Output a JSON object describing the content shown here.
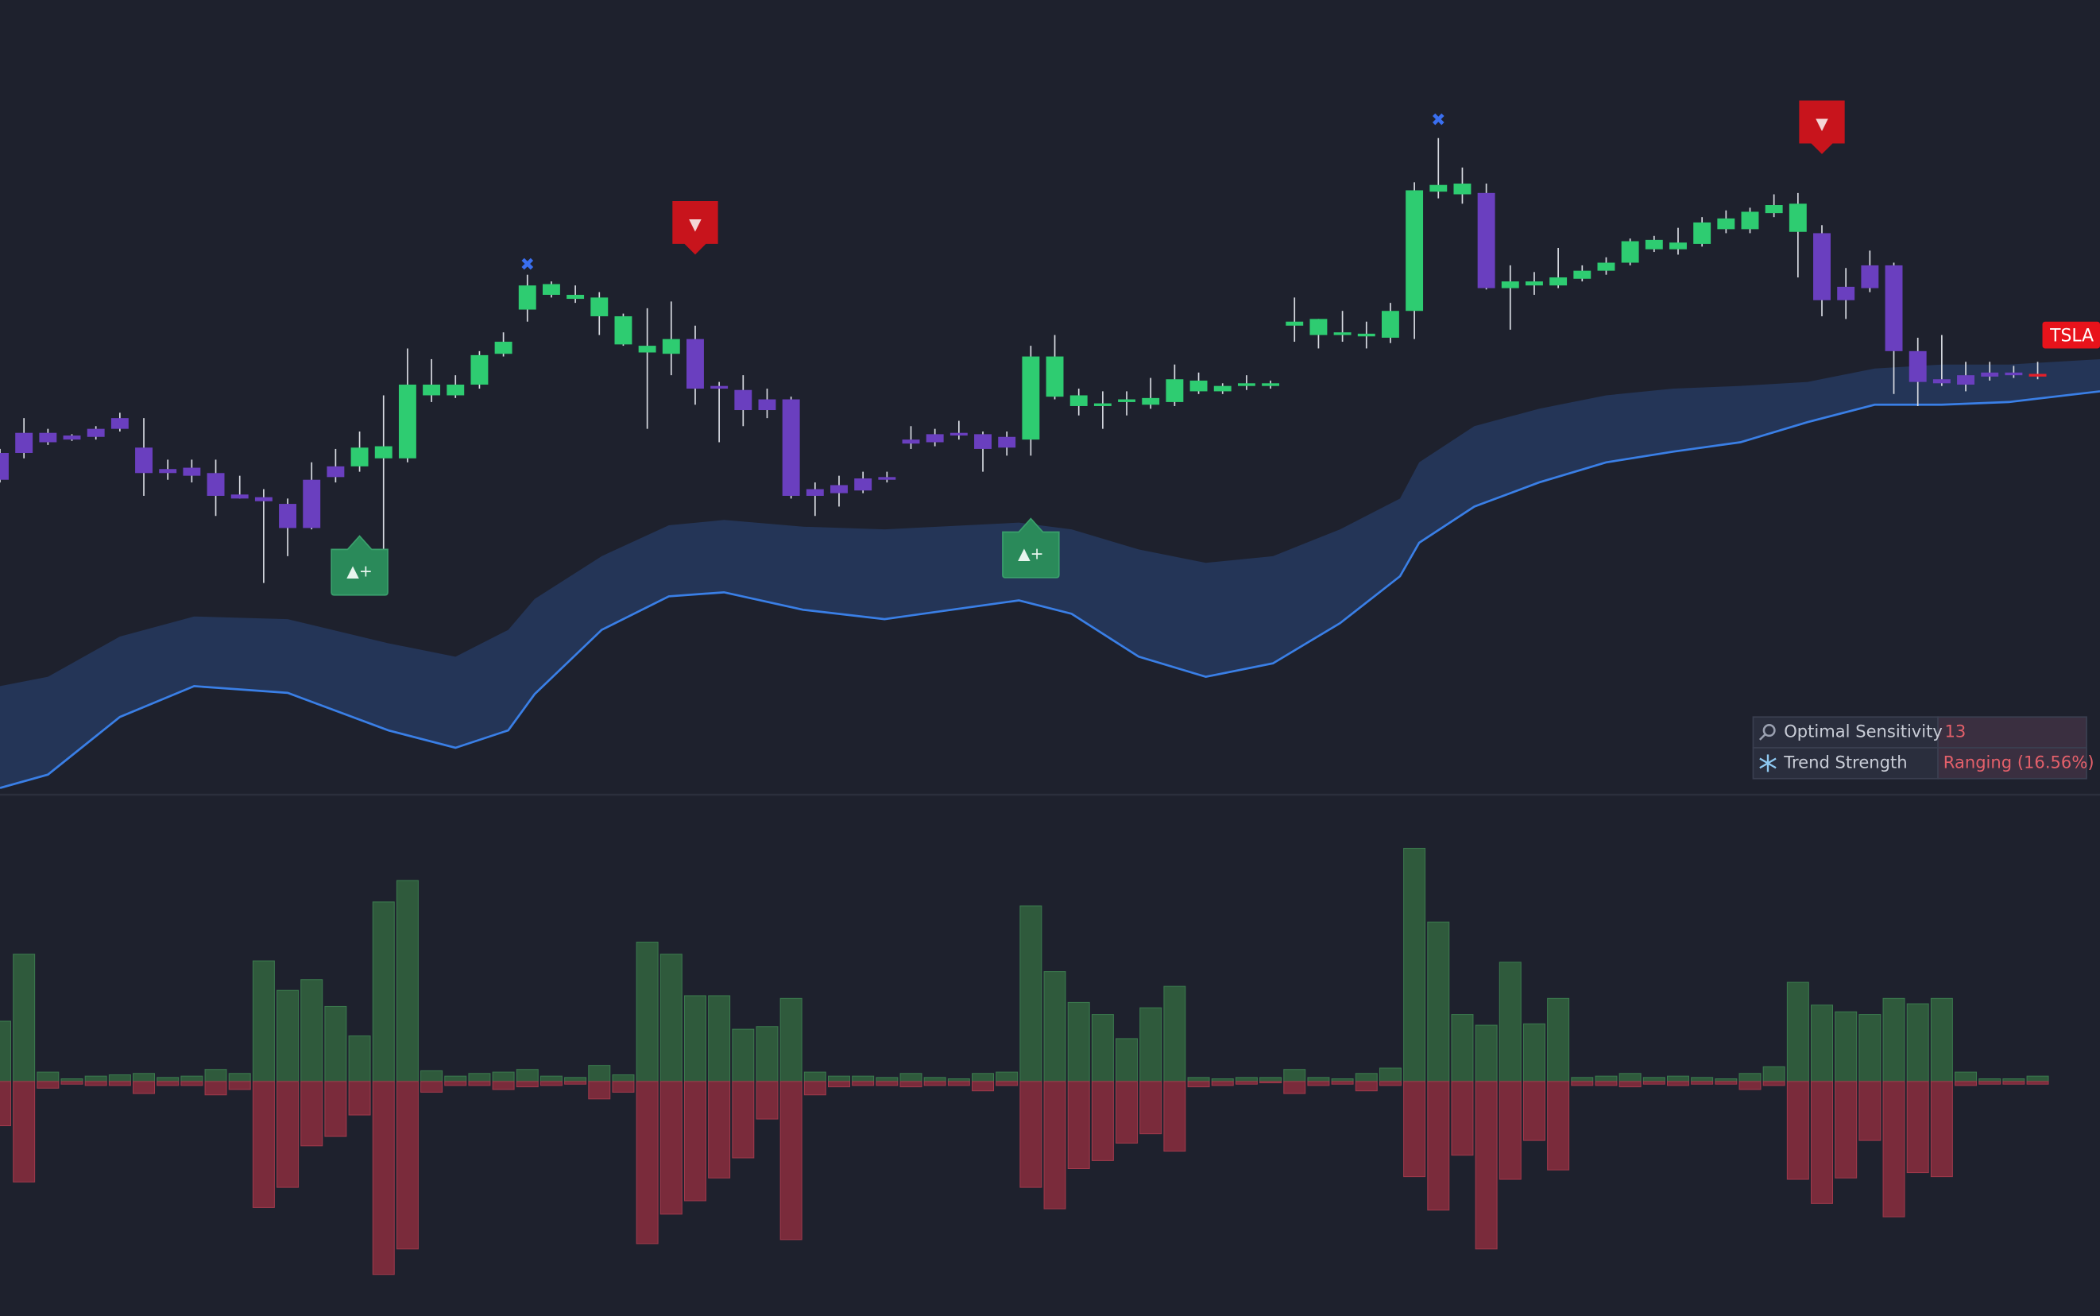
{
  "chart_data": {
    "type": "candlestick",
    "xlim": [
      0,
      87.6
    ],
    "ylim": [
      7,
      600
    ],
    "up_color": "#2ecc71",
    "down_color": "#6a3fbf",
    "last_color": "#e3202a",
    "candles": {
      "open": [
        262,
        277,
        277,
        275,
        280,
        288,
        266,
        250,
        251,
        247,
        231,
        229,
        224,
        242,
        252,
        252,
        258,
        258,
        305,
        305,
        313,
        336,
        369,
        380,
        377,
        364,
        343,
        337,
        336,
        347,
        312,
        309,
        302,
        302,
        235,
        238,
        243,
        244,
        272,
        276,
        277,
        276,
        274,
        272,
        304,
        297,
        297,
        300,
        298,
        300,
        308,
        308,
        312,
        312,
        357,
        350,
        350,
        349,
        348,
        368,
        457,
        455,
        456,
        385,
        387,
        387,
        392,
        398,
        404,
        414,
        414,
        418,
        429,
        429,
        441,
        427,
        426,
        386,
        402,
        402,
        338,
        317,
        320,
        322,
        322,
        321
      ],
      "high": [
        265,
        288,
        280,
        276,
        282,
        292,
        288,
        257,
        257,
        257,
        245,
        235,
        228,
        255,
        265,
        278,
        305,
        340,
        332,
        320,
        338,
        352,
        395,
        390,
        387,
        382,
        366,
        370,
        375,
        357,
        315,
        320,
        310,
        304,
        240,
        245,
        248,
        248,
        282,
        280,
        286,
        278,
        278,
        342,
        350,
        310,
        308,
        308,
        318,
        328,
        322,
        314,
        320,
        316,
        378,
        362,
        368,
        360,
        374,
        464,
        497,
        475,
        463,
        402,
        397,
        415,
        402,
        408,
        422,
        424,
        430,
        438,
        443,
        445,
        455,
        456,
        432,
        400,
        413,
        404,
        348,
        350,
        330,
        330,
        327,
        330
      ],
      "low": [
        240,
        258,
        268,
        271,
        272,
        278,
        230,
        242,
        240,
        215,
        228,
        165,
        185,
        205,
        240,
        248,
        185,
        255,
        300,
        303,
        310,
        334,
        360,
        378,
        374,
        350,
        342,
        280,
        320,
        298,
        270,
        282,
        288,
        228,
        215,
        222,
        232,
        240,
        265,
        267,
        272,
        248,
        260,
        260,
        302,
        290,
        280,
        290,
        295,
        297,
        306,
        306,
        309,
        310,
        345,
        340,
        345,
        340,
        344,
        347,
        452,
        448,
        384,
        354,
        380,
        385,
        390,
        395,
        402,
        412,
        410,
        416,
        426,
        426,
        438,
        393,
        364,
        362,
        382,
        306,
        297,
        312,
        308,
        316,
        318,
        317
      ],
      "close": [
        242,
        262,
        270,
        272,
        274,
        280,
        247,
        247,
        245,
        230,
        228,
        226,
        206,
        206,
        244,
        266,
        267,
        313,
        313,
        313,
        335,
        345,
        387,
        388,
        380,
        378,
        364,
        342,
        347,
        310,
        310,
        294,
        294,
        230,
        230,
        232,
        234,
        242,
        269,
        270,
        275,
        265,
        266,
        334,
        334,
        305,
        299,
        302,
        303,
        317,
        316,
        312,
        314,
        314,
        360,
        362,
        352,
        351,
        368,
        458,
        462,
        463,
        385,
        390,
        390,
        393,
        398,
        404,
        420,
        421,
        419,
        434,
        437,
        442,
        447,
        448,
        376,
        376,
        385,
        338,
        315,
        314,
        313,
        319,
        320,
        319
      ]
    },
    "band": {
      "color": "#243557",
      "line_color": "#3a7fe6",
      "x": [
        0,
        2,
        5,
        8.1,
        12,
        16.2,
        19,
        21.2,
        22.3,
        25.1,
        27.9,
        30.2,
        33.5,
        36.9,
        42.5,
        44.7,
        47.5,
        50.3,
        53.1,
        55.9,
        58.4,
        59.2,
        61.5,
        64.2,
        67,
        69.8,
        72.6,
        75.4,
        78.2,
        81,
        83.8,
        87.6
      ],
      "upper": [
        88,
        95,
        125,
        140,
        138,
        120,
        110,
        130,
        153,
        185,
        208,
        212,
        207,
        205,
        210,
        205,
        190,
        180,
        185,
        205,
        228,
        255,
        282,
        295,
        305,
        310,
        312,
        315,
        325,
        328,
        328,
        332
      ],
      "lower": [
        12,
        22,
        65,
        88,
        83,
        55,
        42,
        55,
        82,
        130,
        155,
        158,
        145,
        138,
        152,
        142,
        110,
        95,
        105,
        135,
        170,
        195,
        222,
        240,
        255,
        263,
        270,
        285,
        298,
        298,
        300,
        308
      ]
    },
    "annotations": [
      {
        "text": "▲+",
        "x": 15,
        "y": 174,
        "kind": "buy"
      },
      {
        "text": "▲+",
        "x": 43,
        "y": 187,
        "kind": "buy"
      },
      {
        "text": "▼",
        "x": 29,
        "y": 432,
        "kind": "sell"
      },
      {
        "text": "▼",
        "x": 76,
        "y": 507,
        "kind": "sell"
      },
      {
        "text": "✖",
        "x": 22,
        "y": 402,
        "kind": "exit"
      },
      {
        "text": "✖",
        "x": 60,
        "y": 510,
        "kind": "exit"
      }
    ],
    "price_label": {
      "text": "TSLA",
      "y": 350
    },
    "volume": {
      "ylim": [
        -175,
        214
      ],
      "up_color": "#2f5a3c",
      "down_color": "#7a2b3b",
      "up": [
        45,
        95,
        7,
        2,
        4,
        5,
        6,
        3,
        4,
        9,
        6,
        90,
        68,
        76,
        56,
        34,
        134,
        150,
        8,
        4,
        6,
        7,
        9,
        4,
        3,
        12,
        5,
        104,
        95,
        64,
        64,
        39,
        41,
        62,
        7,
        4,
        4,
        3,
        6,
        3,
        2,
        6,
        7,
        131,
        82,
        59,
        50,
        32,
        55,
        71,
        3,
        2,
        3,
        3,
        9,
        3,
        2,
        6,
        10,
        174,
        119,
        50,
        42,
        89,
        43,
        62,
        3,
        4,
        6,
        3,
        4,
        3,
        2,
        6,
        11,
        74,
        57,
        52,
        50,
        62,
        58,
        62,
        7,
        2,
        2,
        4
      ],
      "down": [
        -33,
        -75,
        -5,
        -2,
        -3,
        -3,
        -9,
        -3,
        -3,
        -10,
        -6,
        -94,
        -79,
        -48,
        -41,
        -25,
        -144,
        -125,
        -8,
        -3,
        -3,
        -6,
        -4,
        -3,
        -2,
        -13,
        -8,
        -121,
        -99,
        -89,
        -72,
        -57,
        -28,
        -118,
        -10,
        -4,
        -3,
        -3,
        -4,
        -3,
        -3,
        -7,
        -3,
        -79,
        -95,
        -65,
        -59,
        -46,
        -39,
        -52,
        -4,
        -3,
        -2,
        -1,
        -9,
        -3,
        -2,
        -7,
        -3,
        -71,
        -96,
        -55,
        -125,
        -73,
        -44,
        -66,
        -3,
        -3,
        -4,
        -2,
        -3,
        -2,
        -2,
        -6,
        -3,
        -73,
        -91,
        -72,
        -44,
        -101,
        -68,
        -71,
        -3,
        -2,
        -2,
        -2
      ]
    }
  },
  "info_table": {
    "rows": [
      [
        "Optimal Sensitivity",
        "13"
      ],
      [
        "Trend Strength",
        "Ranging (16.56%)"
      ]
    ]
  }
}
